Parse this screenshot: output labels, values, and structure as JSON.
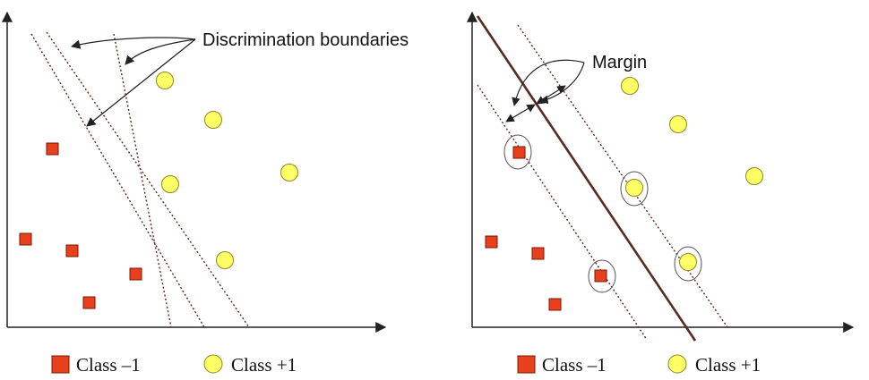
{
  "colors": {
    "square": "#e8401c",
    "square_stroke": "#7a1a08",
    "circle": "#ffff66",
    "circle_stroke": "#8a8a20",
    "axis": "#222222",
    "boundary": "#5a2a20"
  },
  "left_panel": {
    "annotation": "Discrimination boundaries",
    "legend": {
      "square_label": "Class –1",
      "circle_label": "Class +1"
    }
  },
  "right_panel": {
    "annotation": "Margin",
    "legend": {
      "square_label": "Class –1",
      "circle_label": "Class +1"
    }
  }
}
